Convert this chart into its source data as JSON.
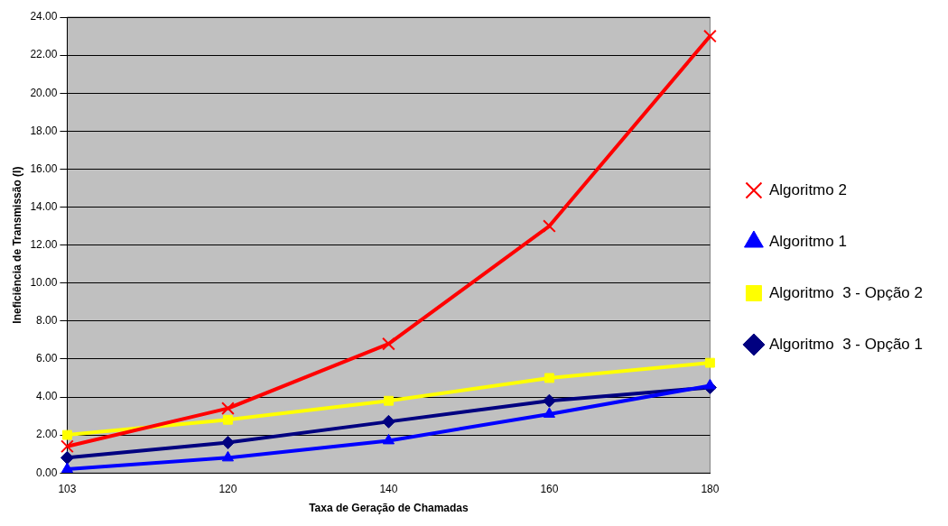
{
  "chart_data": {
    "type": "line",
    "xlabel": "Taxa de Geração de Chamadas",
    "ylabel": "Ineficiência de Transmissão (I)",
    "categories": [
      "103",
      "120",
      "140",
      "160",
      "180"
    ],
    "ylim": [
      0,
      24
    ],
    "yticks": [
      {
        "value": 0,
        "label": "0.00"
      },
      {
        "value": 2,
        "label": "2.00"
      },
      {
        "value": 4,
        "label": "4.00"
      },
      {
        "value": 6,
        "label": "6.00"
      },
      {
        "value": 8,
        "label": "8.00"
      },
      {
        "value": 10,
        "label": "10.00"
      },
      {
        "value": 12,
        "label": "12.00"
      },
      {
        "value": 14,
        "label": "14.00"
      },
      {
        "value": 16,
        "label": "16.00"
      },
      {
        "value": 18,
        "label": "18.00"
      },
      {
        "value": 20,
        "label": "20.00"
      },
      {
        "value": 22,
        "label": "22.00"
      },
      {
        "value": 24,
        "label": "24.00"
      }
    ],
    "grid": "y",
    "legend": "right",
    "line_style": "solid",
    "series": [
      {
        "name": "Algoritmo  3 - Opção 1",
        "color": "#000080",
        "marker": "diamond",
        "values": [
          0.8,
          1.6,
          2.7,
          3.8,
          4.5
        ]
      },
      {
        "name": "Algoritmo  3 - Opção 2",
        "color": "#ffff00",
        "marker": "square",
        "values": [
          2.0,
          2.8,
          3.8,
          5.0,
          5.8
        ]
      },
      {
        "name": "Algoritmo 1",
        "color": "#0000ff",
        "marker": "triangle",
        "values": [
          0.2,
          0.8,
          1.7,
          3.1,
          4.6
        ]
      },
      {
        "name": "Algoritmo 2",
        "color": "#ff0000",
        "marker": "cross",
        "values": [
          1.4,
          3.4,
          6.8,
          13.0,
          23.0
        ]
      }
    ]
  }
}
